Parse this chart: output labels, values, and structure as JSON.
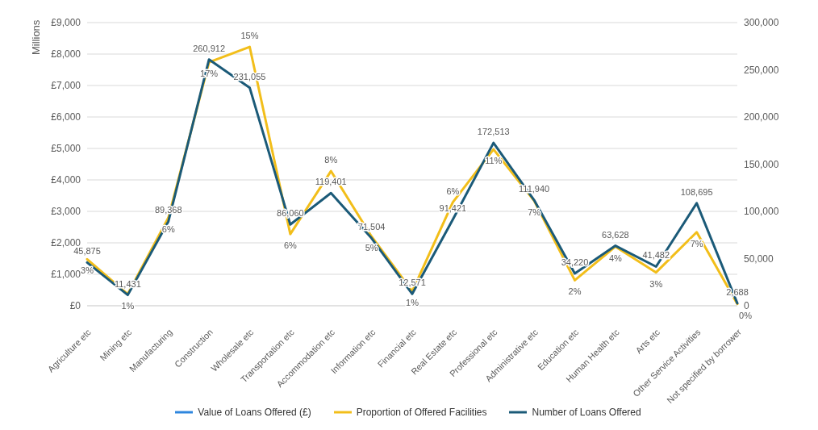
{
  "chart_data": {
    "type": "line",
    "ylabel": "Millions",
    "categories": [
      "Agriculture etc",
      "Mining etc",
      "Manufacturing",
      "Construction",
      "Wholesale etc",
      "Transportation etc",
      "Accommodation etc",
      "Information etc",
      "Financial etc",
      "Real Estate etc",
      "Professional etc",
      "Administrative etc",
      "Education etc",
      "Human Health etc",
      "Arts etc",
      "Other Service Activities",
      "Not specified by borrower"
    ],
    "series": [
      {
        "name": "Value of Loans Offered (£)",
        "color": "#2e86de",
        "values": [
          null,
          null,
          null,
          null,
          null,
          null,
          null,
          null,
          null,
          null,
          null,
          null,
          null,
          null,
          null,
          null,
          null
        ]
      },
      {
        "name": "Proportion of Offered Facilities",
        "color": "#f2be1a",
        "values": [
          1480,
          370,
          2800,
          7740,
          8230,
          2280,
          4280,
          2200,
          460,
          3290,
          4970,
          3340,
          810,
          1880,
          1060,
          2340,
          60
        ]
      },
      {
        "name": "Number of Loans Offered",
        "color": "#1b5a78",
        "axis": "y2",
        "values": [
          45875,
          11431,
          89368,
          260912,
          231055,
          86060,
          119401,
          71504,
          12571,
          91421,
          172513,
          111940,
          34220,
          63628,
          41482,
          108695,
          2688
        ],
        "value_labels": [
          "45,875",
          "11,431",
          "89,368",
          "260,912",
          "231,055",
          "86,060",
          "119,401",
          "71,504",
          "12,571",
          "91,421",
          "172,513",
          "111,940",
          "34,220",
          "63,628",
          "41,482",
          "108,695",
          "2,688"
        ]
      }
    ],
    "annotations": [
      {
        "text": "3%",
        "x": "Agriculture etc",
        "y": 1480
      },
      {
        "text": "1%",
        "x": "Mining etc",
        "y": 370
      },
      {
        "text": "6%",
        "x": "Manufacturing",
        "y": 2800
      },
      {
        "text": "17%",
        "x": "Construction",
        "y": 7740
      },
      {
        "text": "15%",
        "x": "Wholesale etc",
        "y": 8230
      },
      {
        "text": "6%",
        "x": "Transportation etc",
        "y": 2280
      },
      {
        "text": "8%",
        "x": "Accommodation etc",
        "y": 4280
      },
      {
        "text": "5%",
        "x": "Information etc",
        "y": 2200
      },
      {
        "text": "1%",
        "x": "Financial etc",
        "y": 460
      },
      {
        "text": "6%",
        "x": "Real Estate etc",
        "y": 3290
      },
      {
        "text": "11%",
        "x": "Professional etc",
        "y": 4970
      },
      {
        "text": "7%",
        "x": "Administrative etc",
        "y": 3340
      },
      {
        "text": "2%",
        "x": "Education etc",
        "y": 810
      },
      {
        "text": "4%",
        "x": "Human Health etc",
        "y": 1880
      },
      {
        "text": "3%",
        "x": "Arts etc",
        "y": 1060
      },
      {
        "text": "7%",
        "x": "Other Service Activities",
        "y": 2340
      },
      {
        "text": "0%",
        "x": "Not specified by borrower",
        "y": 60
      }
    ],
    "ylim": [
      0,
      9000
    ],
    "yticks": [
      {
        "value": 0,
        "label": "£0"
      },
      {
        "value": 1000,
        "label": "£1,000"
      },
      {
        "value": 2000,
        "label": "£2,000"
      },
      {
        "value": 3000,
        "label": "£3,000"
      },
      {
        "value": 4000,
        "label": "£4,000"
      },
      {
        "value": 5000,
        "label": "£5,000"
      },
      {
        "value": 6000,
        "label": "£6,000"
      },
      {
        "value": 7000,
        "label": "£7,000"
      },
      {
        "value": 8000,
        "label": "£8,000"
      },
      {
        "value": 9000,
        "label": "£9,000"
      }
    ],
    "y2lim": [
      0,
      300000
    ],
    "y2ticks": [
      0,
      {
        "value": 50000,
        "label": "50,000"
      },
      {
        "value": 100000,
        "label": "100,000"
      },
      {
        "value": 150000,
        "label": "150,000"
      },
      {
        "value": 200000,
        "label": "200,000"
      },
      {
        "value": 250000,
        "label": "250,000"
      },
      {
        "value": 300000,
        "label": "300,000"
      }
    ],
    "grid": "y",
    "legend": "bottom",
    "marker": "none",
    "line_style": "solid"
  }
}
